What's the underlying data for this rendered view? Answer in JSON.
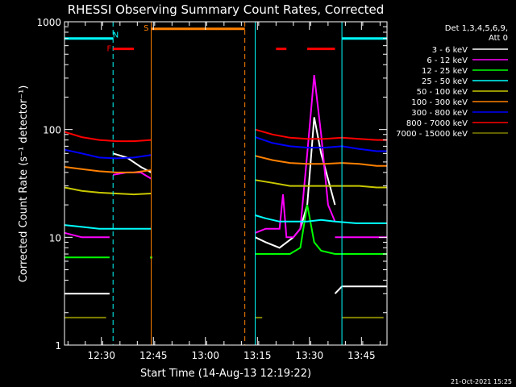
{
  "chart_data": {
    "type": "line",
    "title": "RHESSI Observing Summary Count Rates, Corrected",
    "xlabel": "Start Time (14-Aug-13 12:19:22)",
    "ylabel": "Corrected Count Rate (s⁻¹ detector⁻¹)",
    "yscale": "log",
    "xlim_minutes_after_start": [
      0,
      93
    ],
    "ylim": [
      1,
      1000
    ],
    "x_tick_labels": [
      "12:30",
      "12:45",
      "13:00",
      "13:15",
      "13:30",
      "13:45"
    ],
    "y_tick_labels": [
      "1",
      "10",
      "100",
      "1000"
    ],
    "legend_header": [
      "Det 1,3,4,5,6,9,",
      "Att 0"
    ],
    "legend_placement": "right",
    "footer_timestamp": "21-Oct-2021 15:25",
    "annotations": {
      "N": {
        "label": "N",
        "color": "#00ffff"
      },
      "F": {
        "label": "F",
        "color": "#ff0000"
      },
      "S": {
        "label": "S",
        "color": "#ff8000"
      }
    },
    "series": [
      {
        "name": "3 - 6 keV",
        "color": "#ffffff",
        "segments": [
          {
            "x": [
              0,
              5,
              10,
              13
            ],
            "y": [
              3,
              3,
              3,
              3
            ]
          },
          {
            "x": [
              14,
              18,
              22,
              25
            ],
            "y": [
              60,
              55,
              45,
              40
            ]
          },
          {
            "x": [
              55,
              58,
              62,
              66,
              68,
              70,
              72,
              74,
              78
            ],
            "y": [
              10,
              9,
              8,
              10,
              12,
              20,
              130,
              60,
              20
            ]
          },
          {
            "x": [
              78,
              80,
              85,
              90,
              93
            ],
            "y": [
              3,
              3.5,
              3.5,
              3.5,
              3.5
            ]
          }
        ]
      },
      {
        "name": "6 - 12 keV",
        "color": "#ff00ff",
        "segments": [
          {
            "x": [
              0,
              5,
              10,
              13
            ],
            "y": [
              11,
              10,
              10,
              10
            ]
          },
          {
            "x": [
              14,
              18,
              22,
              25
            ],
            "y": [
              38,
              40,
              40,
              35
            ]
          },
          {
            "x": [
              55,
              58,
              62,
              63,
              64,
              66,
              68,
              70,
              72,
              74,
              76,
              78
            ],
            "y": [
              11,
              12,
              12,
              25,
              10,
              10,
              12,
              60,
              320,
              90,
              20,
              14
            ]
          },
          {
            "x": [
              78,
              82,
              86,
              90,
              93
            ],
            "y": [
              10,
              10,
              10,
              10,
              10
            ]
          }
        ]
      },
      {
        "name": "12 - 25 keV",
        "color": "#00ff00",
        "segments": [
          {
            "x": [
              0,
              5,
              10,
              13
            ],
            "y": [
              6.5,
              6.5,
              6.5,
              6.5
            ]
          },
          {
            "x": [
              25
            ],
            "y": [
              6.5
            ]
          },
          {
            "x": [
              55,
              60,
              65,
              68,
              70,
              72,
              74,
              78
            ],
            "y": [
              7,
              7,
              7,
              8,
              20,
              9,
              7.5,
              7
            ]
          },
          {
            "x": [
              78,
              82,
              86,
              90,
              93
            ],
            "y": [
              7,
              7,
              7,
              7,
              7
            ]
          }
        ]
      },
      {
        "name": "25 - 50 keV",
        "color": "#00ffff",
        "segments": [
          {
            "x": [
              0,
              5,
              10,
              15,
              20,
              25
            ],
            "y": [
              13,
              12.5,
              12,
              12,
              12,
              12
            ]
          },
          {
            "x": [
              55,
              58,
              62,
              66,
              70,
              74,
              78,
              84,
              90,
              93
            ],
            "y": [
              16,
              15,
              14,
              14,
              14,
              14.5,
              14,
              13.5,
              13.5,
              13.5
            ]
          }
        ]
      },
      {
        "name": "50 - 100 keV",
        "color": "#c8c800",
        "segments": [
          {
            "x": [
              0,
              5,
              10,
              15,
              20,
              25
            ],
            "y": [
              29,
              27,
              26,
              25.5,
              25,
              25.5
            ]
          },
          {
            "x": [
              55,
              60,
              65,
              70,
              75,
              80,
              85,
              90,
              93
            ],
            "y": [
              34,
              32,
              30,
              30,
              30,
              30,
              30,
              29,
              29
            ]
          }
        ]
      },
      {
        "name": "100 - 300 keV",
        "color": "#ff8000",
        "segments": [
          {
            "x": [
              0,
              5,
              10,
              15,
              20,
              25
            ],
            "y": [
              45,
              43,
              41,
              40,
              40,
              42
            ]
          },
          {
            "x": [
              55,
              60,
              65,
              70,
              75,
              80,
              85,
              90,
              93
            ],
            "y": [
              57,
              52,
              49,
              48,
              48,
              49,
              48,
              46,
              46
            ]
          }
        ]
      },
      {
        "name": "300 - 800 keV",
        "color": "#0000ff",
        "segments": [
          {
            "x": [
              0,
              5,
              10,
              15,
              20,
              25
            ],
            "y": [
              65,
              60,
              55,
              54,
              55,
              58
            ]
          },
          {
            "x": [
              55,
              60,
              65,
              70,
              75,
              80,
              85,
              90,
              93
            ],
            "y": [
              85,
              75,
              70,
              68,
              68,
              70,
              66,
              63,
              63
            ]
          }
        ]
      },
      {
        "name": "800 - 7000 keV",
        "color": "#ff0000",
        "segments": [
          {
            "x": [
              0,
              5,
              10,
              15,
              20,
              25
            ],
            "y": [
              95,
              85,
              80,
              78,
              78,
              80
            ]
          },
          {
            "x": [
              55,
              60,
              65,
              70,
              75,
              80,
              85,
              90,
              93
            ],
            "y": [
              100,
              90,
              84,
              82,
              82,
              84,
              82,
              80,
              80
            ]
          }
        ]
      },
      {
        "name": "7000 - 15000 keV",
        "color": "#808000",
        "segments": [
          {
            "x": [
              0,
              3,
              6,
              9,
              12
            ],
            "y": [
              1.8,
              1.8,
              1.8,
              1.8,
              1.8
            ]
          },
          {
            "x": [
              55,
              57
            ],
            "y": [
              1.8,
              1.8
            ]
          },
          {
            "x": [
              80,
              84,
              88,
              92
            ],
            "y": [
              1.8,
              1.8,
              1.8,
              1.8
            ]
          }
        ]
      }
    ],
    "event_bars": [
      {
        "label": "N",
        "color": "#00ffff",
        "x_start": 0,
        "x_end": 14,
        "y": 700
      },
      {
        "label": "F",
        "color": "#ff0000",
        "x_start": 14,
        "x_end": 20,
        "y": 560
      },
      {
        "label": "S",
        "color": "#ff8000",
        "x_start": 25,
        "x_end": 52,
        "y": 860
      },
      {
        "label": "",
        "color": "#ff0000",
        "x_start": 61,
        "x_end": 64,
        "y": 560
      },
      {
        "label": "",
        "color": "#ff0000",
        "x_start": 70,
        "x_end": 78,
        "y": 560
      },
      {
        "label": "",
        "color": "#00ffff",
        "x_start": 80,
        "x_end": 93,
        "y": 700
      }
    ],
    "vertical_lines": [
      {
        "x": 14,
        "color": "#00ffff",
        "style": "dashed"
      },
      {
        "x": 25,
        "color": "#ff8000",
        "style": "solid"
      },
      {
        "x": 52,
        "color": "#ff8000",
        "style": "dashed"
      },
      {
        "x": 55,
        "color": "#00ffff",
        "style": "solid"
      },
      {
        "x": 80,
        "color": "#00ffff",
        "style": "solid"
      },
      {
        "x": 93,
        "color": "#00ffff",
        "style": "dashed"
      }
    ]
  }
}
